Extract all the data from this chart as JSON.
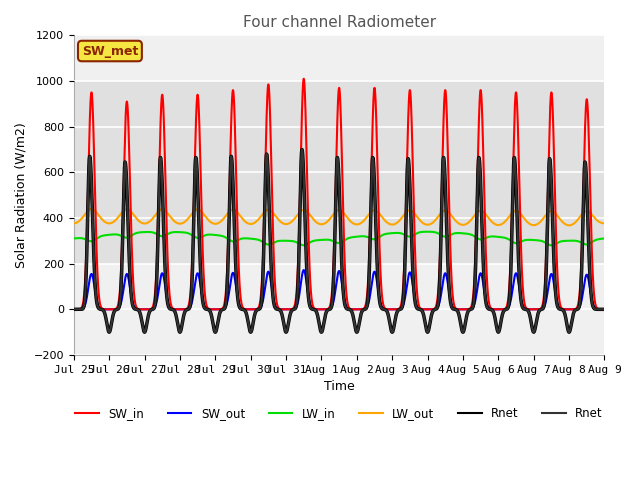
{
  "title": "Four channel Radiometer",
  "xlabel": "Time",
  "ylabel": "Solar Radiation (W/m2)",
  "ylim": [
    -200,
    1200
  ],
  "annotation_text": "SW_met",
  "annotation_bg": "#f5e642",
  "annotation_border": "#8b2500",
  "legend_entries": [
    "SW_in",
    "SW_out",
    "LW_in",
    "LW_out",
    "Rnet",
    "Rnet"
  ],
  "line_colors": [
    "#ff0000",
    "#0000ff",
    "#00dd00",
    "#ffa500",
    "#000000",
    "#333333"
  ],
  "line_widths": [
    1.5,
    1.5,
    1.5,
    1.5,
    2.5,
    1.5
  ],
  "line_styles": [
    "-",
    "-",
    "-",
    "-",
    "-",
    "-"
  ],
  "num_days": 15,
  "sw_in_peaks": [
    950,
    910,
    940,
    940,
    960,
    985,
    1010,
    970,
    970,
    960,
    960,
    960,
    950,
    950,
    920
  ],
  "sw_out_peaks": [
    155,
    155,
    158,
    158,
    160,
    165,
    172,
    168,
    165,
    162,
    158,
    158,
    158,
    155,
    152
  ],
  "lw_in_base": 320,
  "lw_out_base": 385,
  "rnet_peaks": [
    670,
    645,
    665,
    665,
    670,
    680,
    700,
    665,
    665,
    660,
    665,
    665,
    665,
    660,
    645
  ],
  "rnet_night_val": -100,
  "tick_labels": [
    "Jul 25",
    "Jul 26",
    "Jul 27",
    "Jul 28",
    "Jul 29",
    "Jul 30",
    "Jul 31",
    "Aug 1",
    "Aug 2",
    "Aug 3",
    "Aug 4",
    "Aug 5",
    "Aug 6",
    "Aug 7",
    "Aug 8",
    "Aug 9"
  ],
  "plot_bg_outer": "#f0f0f0",
  "plot_bg_inner": "#e0e0e0",
  "grid_color": "#ffffff"
}
